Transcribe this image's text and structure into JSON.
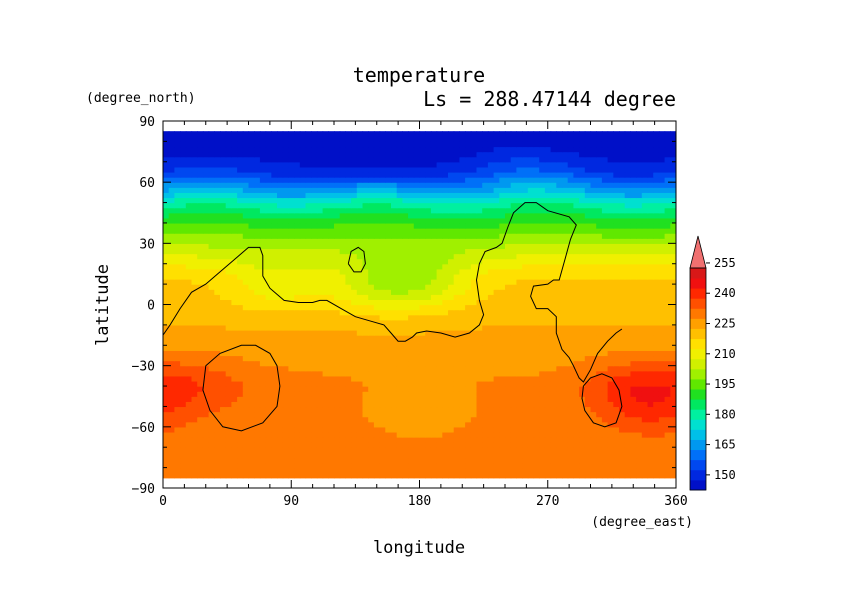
{
  "chart_data": {
    "type": "heatmap",
    "title": "temperature",
    "subtitle": "Ls = 288.47144 degree",
    "xlabel": "longitude",
    "ylabel": "latitude",
    "x_unit": "(degree_east)",
    "y_unit": "(degree_north)",
    "xlim": [
      0,
      360
    ],
    "ylim": [
      -90,
      90
    ],
    "x_ticks": [
      0,
      90,
      180,
      270,
      360
    ],
    "y_ticks": [
      -90,
      -60,
      -30,
      0,
      30,
      60,
      90
    ],
    "x_tick_labels": [
      "0",
      "90",
      "180",
      "270",
      "360"
    ],
    "y_tick_labels": [
      "−90",
      "−60",
      "−30",
      "0",
      "30",
      "60",
      "90"
    ],
    "grid": false,
    "legend": "right colorbar",
    "colorbar": {
      "min": 145,
      "max": 260,
      "step": 5,
      "extend": "max",
      "tick_values": [
        150,
        165,
        180,
        195,
        210,
        225,
        240,
        255
      ],
      "tick_labels": [
        "150",
        "165",
        "180",
        "195",
        "210",
        "225",
        "240",
        "255"
      ],
      "colors": [
        "#0010c8",
        "#0028e0",
        "#0048f0",
        "#0070f8",
        "#0098f0",
        "#00c0e8",
        "#00e0d0",
        "#00f0a0",
        "#00e860",
        "#20e020",
        "#60e800",
        "#a0f000",
        "#d0f000",
        "#f0f000",
        "#ffe000",
        "#ffc000",
        "#ffa000",
        "#ff7800",
        "#ff5000",
        "#ff2800",
        "#f01010",
        "#d81818",
        "#f07070"
      ]
    },
    "zonal_profile": [
      {
        "lat": 85,
        "value": 147
      },
      {
        "lat": 75,
        "value": 148
      },
      {
        "lat": 65,
        "value": 155
      },
      {
        "lat": 60,
        "value": 163
      },
      {
        "lat": 55,
        "value": 171
      },
      {
        "lat": 50,
        "value": 181
      },
      {
        "lat": 45,
        "value": 188
      },
      {
        "lat": 40,
        "value": 194
      },
      {
        "lat": 35,
        "value": 199
      },
      {
        "lat": 30,
        "value": 204
      },
      {
        "lat": 25,
        "value": 209
      },
      {
        "lat": 20,
        "value": 214
      },
      {
        "lat": 15,
        "value": 219
      },
      {
        "lat": 10,
        "value": 221
      },
      {
        "lat": 5,
        "value": 222
      },
      {
        "lat": 0,
        "value": 223
      },
      {
        "lat": -5,
        "value": 224
      },
      {
        "lat": -10,
        "value": 225
      },
      {
        "lat": -15,
        "value": 226
      },
      {
        "lat": -20,
        "value": 227
      },
      {
        "lat": -25,
        "value": 228
      },
      {
        "lat": -30,
        "value": 229
      },
      {
        "lat": -35,
        "value": 230
      },
      {
        "lat": -40,
        "value": 231
      },
      {
        "lat": -45,
        "value": 231
      },
      {
        "lat": -50,
        "value": 231
      },
      {
        "lat": -55,
        "value": 231
      },
      {
        "lat": -60,
        "value": 231
      },
      {
        "lat": -65,
        "value": 231
      },
      {
        "lat": -70,
        "value": 231
      },
      {
        "lat": -75,
        "value": 231
      },
      {
        "lat": -80,
        "value": 231
      },
      {
        "lat": -85,
        "value": 231
      }
    ],
    "regional_anomalies": [
      {
        "lon": 185,
        "lat": 12,
        "value": 208
      },
      {
        "lon": 150,
        "lat": 10,
        "value": 209
      },
      {
        "lon": 80,
        "lat": 10,
        "value": 212
      },
      {
        "lon": 150,
        "lat": 72,
        "value": 143
      },
      {
        "lon": 245,
        "lat": 65,
        "value": 160
      },
      {
        "lon": 20,
        "lat": -38,
        "value": 238
      },
      {
        "lon": 330,
        "lat": -40,
        "value": 241
      },
      {
        "lon": 345,
        "lat": -52,
        "value": 238
      },
      {
        "lon": 70,
        "lat": -45,
        "value": 233
      },
      {
        "lon": 180,
        "lat": -48,
        "value": 227
      }
    ],
    "contours": [
      {
        "name": "equatorial",
        "points": [
          [
            0,
            -15
          ],
          [
            5,
            -10
          ],
          [
            12,
            -2
          ],
          [
            20,
            6
          ],
          [
            30,
            10
          ],
          [
            40,
            16
          ],
          [
            50,
            22
          ],
          [
            60,
            28
          ],
          [
            68,
            28
          ],
          [
            70,
            24
          ],
          [
            70,
            14
          ],
          [
            75,
            8
          ],
          [
            85,
            2
          ],
          [
            95,
            1
          ],
          [
            105,
            1
          ],
          [
            110,
            2
          ],
          [
            115,
            2
          ],
          [
            125,
            -2
          ],
          [
            135,
            -6
          ],
          [
            145,
            -8
          ],
          [
            155,
            -10
          ],
          [
            160,
            -14
          ],
          [
            165,
            -18
          ],
          [
            170,
            -18
          ],
          [
            175,
            -16
          ],
          [
            178,
            -14
          ],
          [
            185,
            -13
          ],
          [
            195,
            -14
          ],
          [
            205,
            -16
          ],
          [
            215,
            -14
          ],
          [
            222,
            -10
          ],
          [
            225,
            -5
          ],
          [
            222,
            2
          ],
          [
            220,
            12
          ],
          [
            222,
            20
          ],
          [
            226,
            26
          ],
          [
            234,
            28
          ],
          [
            238,
            30
          ],
          [
            242,
            38
          ],
          [
            246,
            45
          ],
          [
            254,
            50
          ],
          [
            262,
            50
          ],
          [
            270,
            46
          ],
          [
            285,
            43
          ],
          [
            290,
            39
          ],
          [
            286,
            32
          ],
          [
            282,
            22
          ],
          [
            278,
            12
          ],
          [
            274,
            12
          ],
          [
            270,
            10
          ],
          [
            260,
            9
          ],
          [
            258,
            4
          ],
          [
            262,
            -2
          ],
          [
            270,
            -2
          ],
          [
            276,
            -6
          ],
          [
            276,
            -14
          ],
          [
            280,
            -22
          ],
          [
            285,
            -26
          ],
          [
            288,
            -30
          ],
          [
            292,
            -36
          ],
          [
            295,
            -38
          ],
          [
            300,
            -32
          ],
          [
            305,
            -24
          ],
          [
            312,
            -18
          ],
          [
            318,
            -14
          ],
          [
            322,
            -12
          ]
        ]
      },
      {
        "name": "small-north",
        "points": [
          [
            130,
            20
          ],
          [
            132,
            26
          ],
          [
            137,
            28
          ],
          [
            141,
            26
          ],
          [
            142,
            20
          ],
          [
            139,
            16
          ],
          [
            134,
            16
          ],
          [
            130,
            20
          ]
        ]
      },
      {
        "name": "southwest-ring",
        "points": [
          [
            30,
            -30
          ],
          [
            40,
            -24
          ],
          [
            55,
            -20
          ],
          [
            65,
            -20
          ],
          [
            75,
            -24
          ],
          [
            80,
            -30
          ],
          [
            82,
            -40
          ],
          [
            80,
            -50
          ],
          [
            70,
            -58
          ],
          [
            55,
            -62
          ],
          [
            42,
            -60
          ],
          [
            33,
            -52
          ],
          [
            28,
            -42
          ],
          [
            30,
            -30
          ]
        ]
      },
      {
        "name": "southeast-ring",
        "points": [
          [
            295,
            -40
          ],
          [
            300,
            -36
          ],
          [
            308,
            -34
          ],
          [
            315,
            -36
          ],
          [
            320,
            -42
          ],
          [
            322,
            -50
          ],
          [
            318,
            -58
          ],
          [
            310,
            -60
          ],
          [
            302,
            -58
          ],
          [
            296,
            -52
          ],
          [
            294,
            -46
          ],
          [
            295,
            -40
          ]
        ]
      }
    ]
  }
}
